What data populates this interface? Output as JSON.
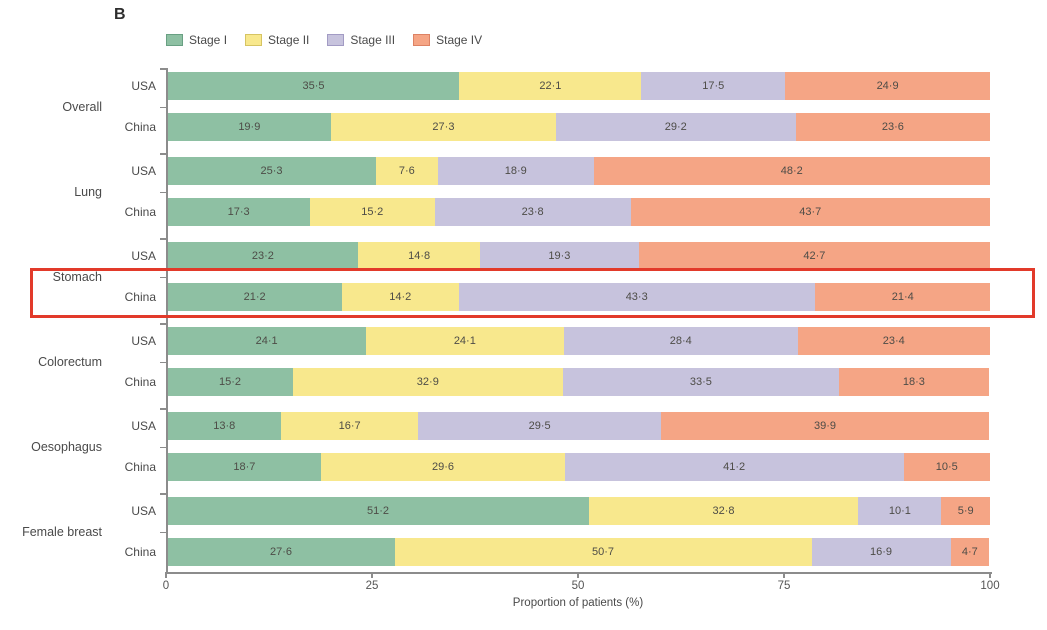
{
  "panel_label": "B",
  "legend": [
    {
      "label": "Stage I",
      "color": "#8ec0a3",
      "border": "#69a083"
    },
    {
      "label": "Stage II",
      "color": "#f8e88d",
      "border": "#d6c463"
    },
    {
      "label": "Stage III",
      "color": "#c7c3dd",
      "border": "#a29bc4"
    },
    {
      "label": "Stage IV",
      "color": "#f5a585",
      "border": "#dd8264"
    }
  ],
  "chart_data": {
    "type": "bar",
    "stacked": true,
    "orientation": "horizontal",
    "xlabel": "Proportion of patients (%)",
    "xlim": [
      0,
      100
    ],
    "xticks": [
      "0",
      "25",
      "50",
      "75",
      "100"
    ],
    "grid": false,
    "legend_position": "top",
    "series_names": [
      "Stage I",
      "Stage II",
      "Stage III",
      "Stage IV"
    ],
    "series_colors": [
      "#8ec0a3",
      "#f8e88d",
      "#c7c3dd",
      "#f5a585"
    ],
    "value_labels_decimal_separator": "·",
    "groups": [
      {
        "label": "Overall",
        "rows": [
          {
            "label": "USA",
            "values": [
              35.5,
              22.1,
              17.5,
              24.9
            ],
            "highlighted": false
          },
          {
            "label": "China",
            "values": [
              19.9,
              27.3,
              29.2,
              23.6
            ],
            "highlighted": false
          }
        ]
      },
      {
        "label": "Lung",
        "rows": [
          {
            "label": "USA",
            "values": [
              25.3,
              7.6,
              18.9,
              48.2
            ],
            "highlighted": false
          },
          {
            "label": "China",
            "values": [
              17.3,
              15.2,
              23.8,
              43.7
            ],
            "highlighted": false
          }
        ]
      },
      {
        "label": "Stomach",
        "rows": [
          {
            "label": "USA",
            "values": [
              23.2,
              14.8,
              19.3,
              42.7
            ],
            "highlighted": false
          },
          {
            "label": "China",
            "values": [
              21.2,
              14.2,
              43.3,
              21.4
            ],
            "highlighted": true
          }
        ]
      },
      {
        "label": "Colorectum",
        "rows": [
          {
            "label": "USA",
            "values": [
              24.1,
              24.1,
              28.4,
              23.4
            ],
            "highlighted": false
          },
          {
            "label": "China",
            "values": [
              15.2,
              32.9,
              33.5,
              18.3
            ],
            "highlighted": false
          }
        ]
      },
      {
        "label": "Oesophagus",
        "rows": [
          {
            "label": "USA",
            "values": [
              13.8,
              16.7,
              29.5,
              39.9
            ],
            "highlighted": false
          },
          {
            "label": "China",
            "values": [
              18.7,
              29.6,
              41.2,
              10.5
            ],
            "highlighted": false
          }
        ]
      },
      {
        "label": "Female breast",
        "rows": [
          {
            "label": "USA",
            "values": [
              51.2,
              32.8,
              10.1,
              5.9
            ],
            "highlighted": false
          },
          {
            "label": "China",
            "values": [
              27.6,
              50.7,
              16.9,
              4.7
            ],
            "highlighted": false
          }
        ]
      }
    ],
    "highlight": {
      "group": "Stomach",
      "row": "China",
      "color": "#e23a2a"
    }
  }
}
